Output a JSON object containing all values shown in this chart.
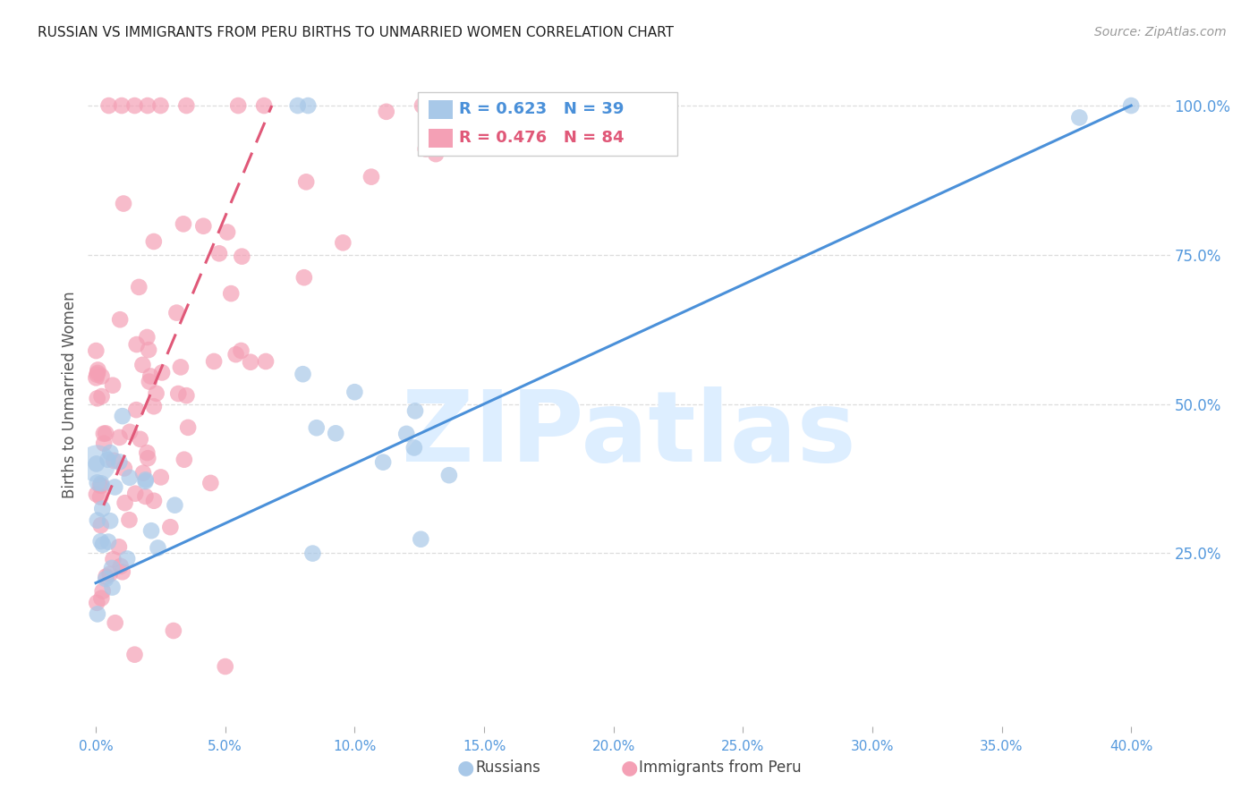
{
  "title": "RUSSIAN VS IMMIGRANTS FROM PERU BIRTHS TO UNMARRIED WOMEN CORRELATION CHART",
  "source": "Source: ZipAtlas.com",
  "ylabel": "Births to Unmarried Women",
  "xmin": 0.0,
  "xmax": 40.0,
  "ymin": 0.0,
  "ymax": 100.0,
  "russians": {
    "R": 0.623,
    "N": 39,
    "color": "#a8c8e8",
    "legend": "Russians",
    "line_color": "#4a90d9",
    "dot_size": 180
  },
  "peru": {
    "R": 0.476,
    "N": 84,
    "color": "#f4a0b5",
    "legend": "Immigrants from Peru",
    "line_color": "#e05878",
    "dot_size": 180
  },
  "watermark": "ZIPatlas",
  "watermark_color": "#ddeeff",
  "background_color": "#ffffff",
  "title_fontsize": 11,
  "axis_label_color": "#555555",
  "tick_color": "#5599dd",
  "grid_color": "#dddddd"
}
